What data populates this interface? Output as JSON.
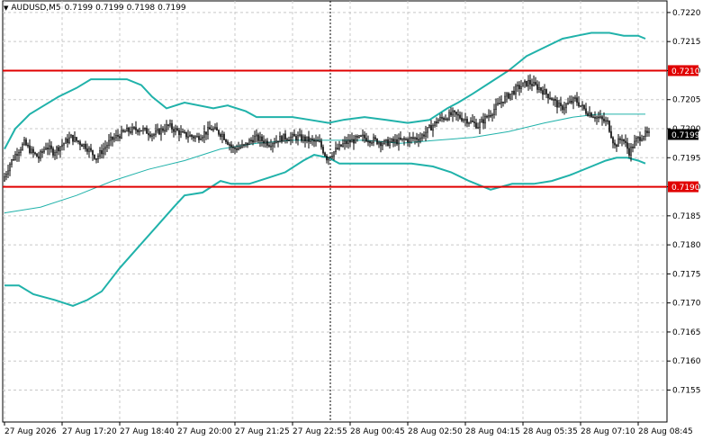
{
  "header": {
    "symbol_timeframe": "AUDUSD,M5",
    "quotes": [
      "0.7199",
      "0.7199",
      "0.7198",
      "0.7199"
    ]
  },
  "colors": {
    "background": "#ffffff",
    "grid": "#c8c8c8",
    "candles": "#000000",
    "bollinger": "#20b2aa",
    "level_lines": "#e00000",
    "level_label_bg": "#e00000",
    "price_label_bg": "#000000"
  },
  "chart_data": {
    "type": "candlestick",
    "grid": true,
    "ylim": [
      0.71495,
      0.7222
    ],
    "y_ticks": [
      "0.7220",
      "0.7215",
      "0.7210",
      "0.7205",
      "0.7200",
      "0.7195",
      "0.7190",
      "0.7185",
      "0.7180",
      "0.7175",
      "0.7170",
      "0.7165",
      "0.7160",
      "0.7155"
    ],
    "x_ticks": [
      "27 Aug 2026",
      "27 Aug 17:20",
      "27 Aug 18:40",
      "27 Aug 20:00",
      "27 Aug 21:25",
      "27 Aug 22:55",
      "28 Aug 00:45",
      "28 Aug 02:50",
      "28 Aug 04:15",
      "28 Aug 05:35",
      "28 Aug 07:10",
      "28 Aug 08:45"
    ],
    "x_tick_bar_index": [
      0,
      32,
      64,
      96,
      128,
      160,
      192,
      224,
      256,
      288,
      320,
      352
    ],
    "horizontal_levels": [
      {
        "label": "0.7210",
        "value": 0.721
      },
      {
        "label": "0.7190",
        "value": 0.719
      }
    ],
    "current_price": {
      "label": "0.7199",
      "value": 0.7199
    },
    "vertical_marker_bar_index": 181,
    "total_bars": 359,
    "close_path": [
      [
        0,
        0.7191
      ],
      [
        4,
        0.7194
      ],
      [
        8,
        0.7196
      ],
      [
        12,
        0.71975
      ],
      [
        16,
        0.7196
      ],
      [
        20,
        0.7195
      ],
      [
        24,
        0.7197
      ],
      [
        28,
        0.7196
      ],
      [
        32,
        0.7197
      ],
      [
        38,
        0.71985
      ],
      [
        46,
        0.7197
      ],
      [
        52,
        0.7195
      ],
      [
        60,
        0.7198
      ],
      [
        68,
        0.71995
      ],
      [
        76,
        0.72
      ],
      [
        84,
        0.7199
      ],
      [
        92,
        0.72005
      ],
      [
        100,
        0.7199
      ],
      [
        108,
        0.71985
      ],
      [
        116,
        0.72
      ],
      [
        122,
        0.7199
      ],
      [
        128,
        0.71965
      ],
      [
        134,
        0.7197
      ],
      [
        140,
        0.71985
      ],
      [
        148,
        0.71975
      ],
      [
        156,
        0.71985
      ],
      [
        164,
        0.71985
      ],
      [
        170,
        0.7198
      ],
      [
        176,
        0.71975
      ],
      [
        180,
        0.7195
      ],
      [
        184,
        0.7196
      ],
      [
        190,
        0.71975
      ],
      [
        200,
        0.71985
      ],
      [
        212,
        0.71975
      ],
      [
        222,
        0.7198
      ],
      [
        232,
        0.71985
      ],
      [
        242,
        0.72015
      ],
      [
        250,
        0.72025
      ],
      [
        258,
        0.72015
      ],
      [
        264,
        0.72005
      ],
      [
        272,
        0.7203
      ],
      [
        278,
        0.7205
      ],
      [
        286,
        0.7207
      ],
      [
        292,
        0.7208
      ],
      [
        298,
        0.7207
      ],
      [
        304,
        0.72055
      ],
      [
        310,
        0.72035
      ],
      [
        318,
        0.7205
      ],
      [
        324,
        0.7203
      ],
      [
        330,
        0.7202
      ],
      [
        336,
        0.7201
      ],
      [
        340,
        0.7197
      ],
      [
        344,
        0.71985
      ],
      [
        348,
        0.7196
      ],
      [
        352,
        0.7198
      ],
      [
        356,
        0.7199
      ]
    ],
    "bollinger_upper": [
      [
        0,
        0.71965
      ],
      [
        6,
        0.72
      ],
      [
        14,
        0.72025
      ],
      [
        22,
        0.7204
      ],
      [
        30,
        0.72055
      ],
      [
        40,
        0.7207
      ],
      [
        48,
        0.72085
      ],
      [
        60,
        0.72085
      ],
      [
        68,
        0.72085
      ],
      [
        76,
        0.72075
      ],
      [
        82,
        0.72055
      ],
      [
        90,
        0.72035
      ],
      [
        100,
        0.72045
      ],
      [
        116,
        0.72035
      ],
      [
        124,
        0.7204
      ],
      [
        134,
        0.7203
      ],
      [
        140,
        0.7202
      ],
      [
        150,
        0.7202
      ],
      [
        160,
        0.7202
      ],
      [
        170,
        0.72015
      ],
      [
        180,
        0.7201
      ],
      [
        188,
        0.72015
      ],
      [
        200,
        0.7202
      ],
      [
        212,
        0.72015
      ],
      [
        224,
        0.7201
      ],
      [
        236,
        0.72015
      ],
      [
        246,
        0.72035
      ],
      [
        252,
        0.72045
      ],
      [
        260,
        0.7206
      ],
      [
        270,
        0.7208
      ],
      [
        280,
        0.721
      ],
      [
        290,
        0.72125
      ],
      [
        300,
        0.7214
      ],
      [
        310,
        0.72155
      ],
      [
        318,
        0.7216
      ],
      [
        326,
        0.72165
      ],
      [
        336,
        0.72165
      ],
      [
        344,
        0.7216
      ],
      [
        352,
        0.7216
      ],
      [
        356,
        0.72155
      ]
    ],
    "bollinger_middle": [
      [
        0,
        0.71855
      ],
      [
        20,
        0.71865
      ],
      [
        40,
        0.71885
      ],
      [
        60,
        0.7191
      ],
      [
        80,
        0.7193
      ],
      [
        100,
        0.71945
      ],
      [
        120,
        0.71965
      ],
      [
        140,
        0.71975
      ],
      [
        160,
        0.7198
      ],
      [
        180,
        0.7198
      ],
      [
        200,
        0.7198
      ],
      [
        220,
        0.71975
      ],
      [
        240,
        0.7198
      ],
      [
        260,
        0.71985
      ],
      [
        280,
        0.71995
      ],
      [
        300,
        0.7201
      ],
      [
        316,
        0.7202
      ],
      [
        330,
        0.72025
      ],
      [
        340,
        0.72025
      ],
      [
        356,
        0.72025
      ]
    ],
    "bollinger_lower": [
      [
        0,
        0.7173
      ],
      [
        8,
        0.7173
      ],
      [
        16,
        0.71715
      ],
      [
        28,
        0.71705
      ],
      [
        38,
        0.71695
      ],
      [
        46,
        0.71705
      ],
      [
        54,
        0.7172
      ],
      [
        64,
        0.7176
      ],
      [
        74,
        0.71795
      ],
      [
        84,
        0.7183
      ],
      [
        94,
        0.71865
      ],
      [
        100,
        0.71885
      ],
      [
        110,
        0.7189
      ],
      [
        120,
        0.7191
      ],
      [
        126,
        0.71905
      ],
      [
        136,
        0.71905
      ],
      [
        146,
        0.71915
      ],
      [
        156,
        0.71925
      ],
      [
        166,
        0.71945
      ],
      [
        172,
        0.71955
      ],
      [
        180,
        0.7195
      ],
      [
        186,
        0.7194
      ],
      [
        196,
        0.7194
      ],
      [
        210,
        0.7194
      ],
      [
        226,
        0.7194
      ],
      [
        238,
        0.71935
      ],
      [
        248,
        0.71925
      ],
      [
        258,
        0.7191
      ],
      [
        270,
        0.71895
      ],
      [
        282,
        0.71905
      ],
      [
        294,
        0.71905
      ],
      [
        304,
        0.7191
      ],
      [
        314,
        0.7192
      ],
      [
        326,
        0.71935
      ],
      [
        334,
        0.71945
      ],
      [
        340,
        0.7195
      ],
      [
        346,
        0.7195
      ],
      [
        352,
        0.71945
      ],
      [
        356,
        0.7194
      ]
    ]
  }
}
